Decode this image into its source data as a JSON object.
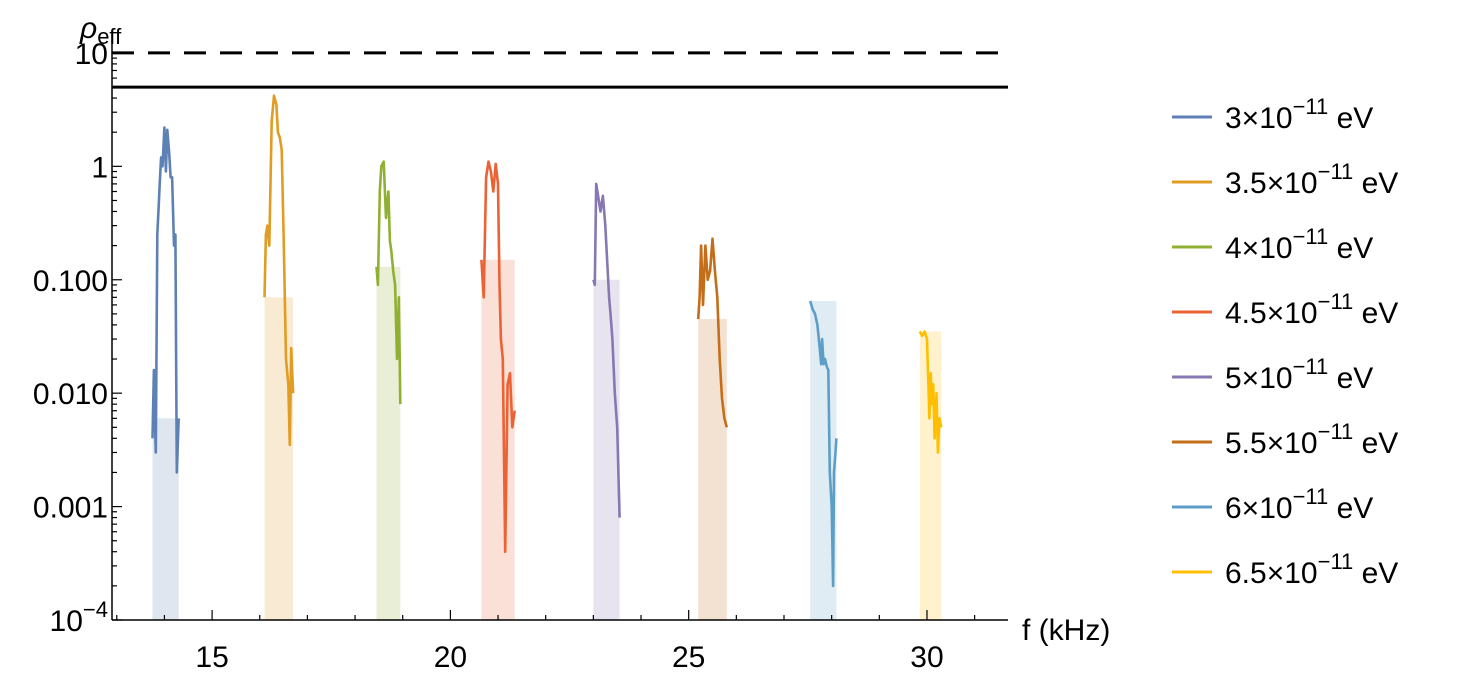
{
  "chart_data": {
    "type": "line",
    "xlabel": "f (kHz)",
    "ylabel": "ρ_eff",
    "ylabel_base": "ρ",
    "ylabel_sub": "eff",
    "yscale": "log",
    "xlim": [
      12.9,
      31.7
    ],
    "ylim": [
      0.0001,
      13
    ],
    "x_ticks": [
      15,
      20,
      25,
      30
    ],
    "x_tick_labels": [
      "15",
      "20",
      "25",
      "30"
    ],
    "y_ticks": [
      0.0001,
      0.001,
      0.01,
      0.1,
      1,
      10
    ],
    "y_tick_labels": [
      {
        "base": "10",
        "exp": "−4"
      },
      {
        "base": "0.001",
        "exp": ""
      },
      {
        "base": "0.010",
        "exp": ""
      },
      {
        "base": "0.100",
        "exp": ""
      },
      {
        "base": "1",
        "exp": ""
      },
      {
        "base": "10",
        "exp": ""
      }
    ],
    "reference_lines": [
      {
        "y": 10,
        "style": "dashed",
        "color": "#000000"
      },
      {
        "y": 5,
        "style": "solid",
        "color": "#000000"
      }
    ],
    "legend_position": "right",
    "series": [
      {
        "name": "3×10",
        "exp": "−11",
        "unit": " eV",
        "color": "#5E81B5",
        "shade": [
          13.75,
          14.3
        ],
        "x": [
          13.75,
          13.78,
          13.8,
          13.82,
          13.85,
          13.88,
          13.9,
          13.93,
          13.96,
          14.0,
          14.03,
          14.06,
          14.1,
          14.13,
          14.16,
          14.2,
          14.23,
          14.26,
          14.3
        ],
        "y": [
          0.004,
          0.016,
          0.006,
          0.003,
          0.25,
          0.45,
          0.7,
          1.2,
          1.0,
          2.2,
          0.9,
          2.1,
          1.3,
          0.8,
          0.8,
          0.2,
          0.25,
          0.002,
          0.006
        ]
      },
      {
        "name": "3.5×10",
        "exp": "−11",
        "unit": " eV",
        "color": "#E19C24",
        "shade": [
          16.1,
          16.7
        ],
        "x": [
          16.1,
          16.13,
          16.16,
          16.2,
          16.25,
          16.3,
          16.35,
          16.38,
          16.42,
          16.46,
          16.5,
          16.55,
          16.6,
          16.63,
          16.66,
          16.7
        ],
        "y": [
          0.07,
          0.25,
          0.3,
          0.2,
          2.5,
          4.2,
          3.5,
          2.0,
          1.8,
          1.4,
          0.25,
          0.02,
          0.012,
          0.0035,
          0.025,
          0.01
        ]
      },
      {
        "name": "4×10",
        "exp": "−11",
        "unit": " eV",
        "color": "#8FB032",
        "shade": [
          18.45,
          18.95
        ],
        "x": [
          18.45,
          18.48,
          18.52,
          18.55,
          18.6,
          18.65,
          18.7,
          18.73,
          18.76,
          18.8,
          18.84,
          18.88,
          18.92,
          18.95
        ],
        "y": [
          0.13,
          0.09,
          0.6,
          1.0,
          1.1,
          0.35,
          0.6,
          0.22,
          0.18,
          0.12,
          0.09,
          0.02,
          0.07,
          0.008
        ]
      },
      {
        "name": "4.5×10",
        "exp": "−11",
        "unit": " eV",
        "color": "#EB6235",
        "shade": [
          20.65,
          21.35
        ],
        "x": [
          20.65,
          20.7,
          20.75,
          20.8,
          20.85,
          20.9,
          20.95,
          21.0,
          21.03,
          21.06,
          21.1,
          21.15,
          21.2,
          21.25,
          21.3,
          21.35
        ],
        "y": [
          0.15,
          0.07,
          0.8,
          1.1,
          0.9,
          0.6,
          1.05,
          0.7,
          0.09,
          0.03,
          0.02,
          0.0004,
          0.012,
          0.015,
          0.005,
          0.007
        ]
      },
      {
        "name": "5×10",
        "exp": "−11",
        "unit": " eV",
        "color": "#8778B3",
        "shade": [
          23.0,
          23.55
        ],
        "x": [
          23.0,
          23.03,
          23.06,
          23.1,
          23.15,
          23.2,
          23.25,
          23.3,
          23.33,
          23.36,
          23.4,
          23.45,
          23.5,
          23.55
        ],
        "y": [
          0.1,
          0.09,
          0.7,
          0.55,
          0.4,
          0.55,
          0.3,
          0.12,
          0.07,
          0.05,
          0.03,
          0.01,
          0.005,
          0.0008
        ]
      },
      {
        "name": "5.5×10",
        "exp": "−11",
        "unit": " eV",
        "color": "#C56E1A",
        "shade": [
          25.2,
          25.8
        ],
        "x": [
          25.2,
          25.23,
          25.26,
          25.3,
          25.35,
          25.4,
          25.45,
          25.5,
          25.55,
          25.6,
          25.65,
          25.7,
          25.75,
          25.8
        ],
        "y": [
          0.045,
          0.07,
          0.2,
          0.06,
          0.2,
          0.1,
          0.12,
          0.23,
          0.12,
          0.07,
          0.02,
          0.009,
          0.006,
          0.005
        ]
      },
      {
        "name": "6×10",
        "exp": "−11",
        "unit": " eV",
        "color": "#5D9EC7",
        "shade": [
          27.55,
          28.1
        ],
        "x": [
          27.55,
          27.6,
          27.65,
          27.7,
          27.75,
          27.78,
          27.8,
          27.83,
          27.86,
          27.9,
          27.93,
          27.96,
          28.0,
          28.03,
          28.05,
          28.08,
          28.1
        ],
        "y": [
          0.065,
          0.055,
          0.05,
          0.04,
          0.025,
          0.018,
          0.03,
          0.018,
          0.02,
          0.017,
          0.016,
          0.002,
          0.001,
          0.0002,
          0.002,
          0.003,
          0.004
        ]
      },
      {
        "name": "6.5×10",
        "exp": "−11",
        "unit": " eV",
        "color": "#FFBF00",
        "shade": [
          29.85,
          30.3
        ],
        "x": [
          29.85,
          29.9,
          29.95,
          30.0,
          30.05,
          30.08,
          30.1,
          30.13,
          30.16,
          30.2,
          30.23,
          30.26,
          30.3
        ],
        "y": [
          0.035,
          0.032,
          0.035,
          0.03,
          0.006,
          0.015,
          0.008,
          0.012,
          0.004,
          0.01,
          0.003,
          0.006,
          0.005
        ]
      }
    ]
  }
}
